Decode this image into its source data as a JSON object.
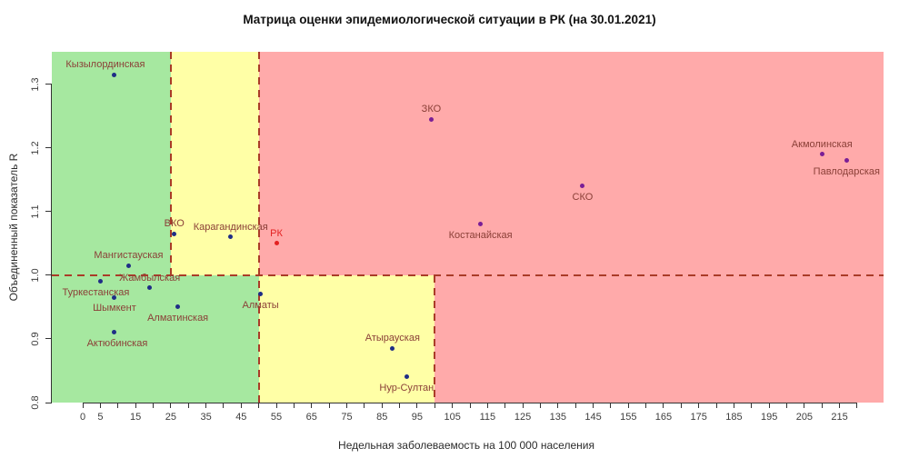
{
  "colors": {
    "zone_green": "#A6E8A0",
    "zone_yellow": "#FFFFA6",
    "zone_red": "#FFAAAA",
    "dash_line": "#AA3C28",
    "point_navy": "#1F2D86",
    "point_purple": "#7A1E96",
    "point_red": "#E32222",
    "label_default": "#8B4038",
    "label_rk": "#E32222"
  },
  "chart_data": {
    "type": "scatter",
    "title": "Матрица оценки эпидемиологической ситуации в РК (на 30.01.2021)",
    "xlabel": "Недельная заболеваемость на 100 000 населения",
    "ylabel": "Объединенный показатель R",
    "xlim": [
      0,
      220
    ],
    "ylim": [
      0.8,
      1.35
    ],
    "grid": false,
    "x_tick_step": 5,
    "x_tick_min": 0,
    "x_tick_max": 220,
    "x_tick_labels": [
      0,
      5,
      15,
      25,
      35,
      45,
      55,
      65,
      75,
      85,
      95,
      105,
      115,
      125,
      135,
      145,
      155,
      165,
      175,
      185,
      195,
      205,
      215
    ],
    "y_tick_labels": [
      "0.8",
      "0.9",
      "1.0",
      "1.1",
      "1.2",
      "1.3"
    ],
    "threshold_r": 1.0,
    "zones": {
      "upper_green_max_x": 25,
      "upper_yellow_max_x": 50,
      "lower_green_max_x": 50,
      "lower_yellow_max_x": 100
    },
    "points": [
      {
        "name": "Кызылординская",
        "x": 9,
        "y": 1.315,
        "label_pos": "above",
        "point_color": "navy",
        "dx": -10
      },
      {
        "name": "ЗКО",
        "x": 99,
        "y": 1.245,
        "label_pos": "above",
        "point_color": "purple",
        "dx": 0
      },
      {
        "name": "Акмолинская",
        "x": 210,
        "y": 1.19,
        "label_pos": "above",
        "point_color": "purple",
        "dx": 0
      },
      {
        "name": "Павлодарская",
        "x": 217,
        "y": 1.18,
        "label_pos": "below",
        "point_color": "purple",
        "dx": 0
      },
      {
        "name": "СКО",
        "x": 142,
        "y": 1.14,
        "label_pos": "below",
        "point_color": "purple",
        "dx": 0
      },
      {
        "name": "Костанайская",
        "x": 113,
        "y": 1.08,
        "label_pos": "below",
        "point_color": "purple",
        "dx": 0
      },
      {
        "name": "ВКО",
        "x": 26,
        "y": 1.065,
        "label_pos": "above",
        "point_color": "navy",
        "dx": 0
      },
      {
        "name": "Карагандинская",
        "x": 42,
        "y": 1.06,
        "label_pos": "above",
        "point_color": "navy",
        "dx": 0
      },
      {
        "name": "РК",
        "x": 55,
        "y": 1.05,
        "label_pos": "above",
        "point_color": "red",
        "label_color": "rk",
        "dx": 0
      },
      {
        "name": "Мангистауская",
        "x": 13,
        "y": 1.015,
        "label_pos": "above",
        "point_color": "navy",
        "dx": 0
      },
      {
        "name": "Туркестанская",
        "x": 5,
        "y": 0.99,
        "label_pos": "below",
        "point_color": "navy",
        "dx": -5
      },
      {
        "name": "Жамбылская",
        "x": 19,
        "y": 0.98,
        "label_pos": "above",
        "point_color": "navy",
        "dx": 0
      },
      {
        "name": "Алматы",
        "x": 50.5,
        "y": 0.97,
        "label_pos": "below",
        "point_color": "navy",
        "dx": 0
      },
      {
        "name": "Шымкент",
        "x": 9,
        "y": 0.965,
        "label_pos": "below",
        "point_color": "navy",
        "dx": 0
      },
      {
        "name": "Алматинская",
        "x": 27,
        "y": 0.95,
        "label_pos": "below",
        "point_color": "navy",
        "dx": 0
      },
      {
        "name": "Актюбинская",
        "x": 9,
        "y": 0.91,
        "label_pos": "below",
        "point_color": "navy",
        "dx": 3
      },
      {
        "name": "Атырауская",
        "x": 88,
        "y": 0.885,
        "label_pos": "above",
        "point_color": "navy",
        "dx": 0
      },
      {
        "name": "Нур-Султан",
        "x": 92,
        "y": 0.84,
        "label_pos": "below",
        "point_color": "navy",
        "dx": 0
      }
    ]
  }
}
